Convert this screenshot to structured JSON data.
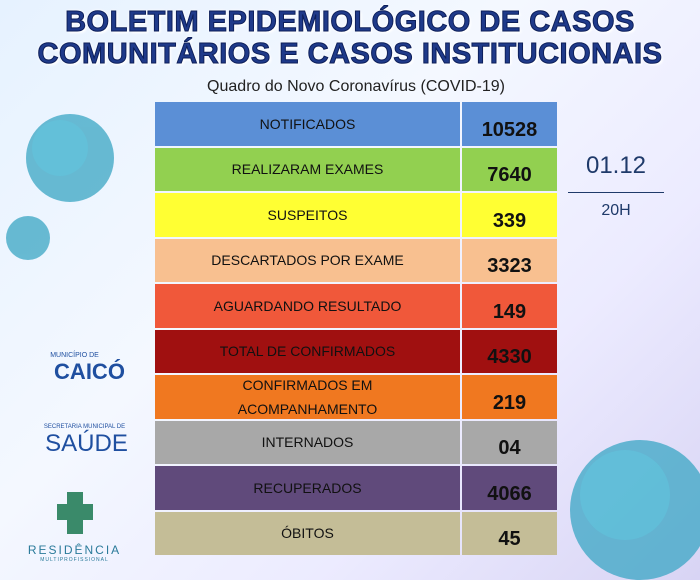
{
  "header": {
    "title_line1": "BOLETIM EPIDEMIOLÓGICO DE CASOS",
    "title_line2": "COMUNITÁRIOS E CASOS INSTITUCIONAIS",
    "subtitle": "Quadro do Novo Coronavírus (COVID-19)"
  },
  "table": {
    "rows": [
      [
        "NOTIFICADOS",
        "10528"
      ],
      [
        "REALIZARAM EXAMES",
        "7640"
      ],
      [
        "SUSPEITOS",
        "339"
      ],
      [
        "DESCARTADOS POR EXAME",
        "3323"
      ],
      [
        "AGUARDANDO RESULTADO",
        "149"
      ],
      [
        "TOTAL DE CONFIRMADOS",
        "4330"
      ],
      [
        "CONFIRMADOS EM ACOMPANHAMENTO",
        "219"
      ],
      [
        "INTERNADOS",
        "04"
      ],
      [
        "RECUPERADOS",
        "4066"
      ],
      [
        "ÓBITOS",
        "45"
      ]
    ]
  },
  "date": {
    "day": "01.12",
    "time": "20H"
  },
  "logos": {
    "municipio_small": "MUNICÍPIO DE",
    "municipio": "CAICÓ",
    "secretaria_small": "SECRETARIA MUNICIPAL DE",
    "secretaria": "SAÚDE",
    "residencia": "RESIDÊNCIA",
    "residencia_small": "MULTIPROFISSIONAL"
  }
}
